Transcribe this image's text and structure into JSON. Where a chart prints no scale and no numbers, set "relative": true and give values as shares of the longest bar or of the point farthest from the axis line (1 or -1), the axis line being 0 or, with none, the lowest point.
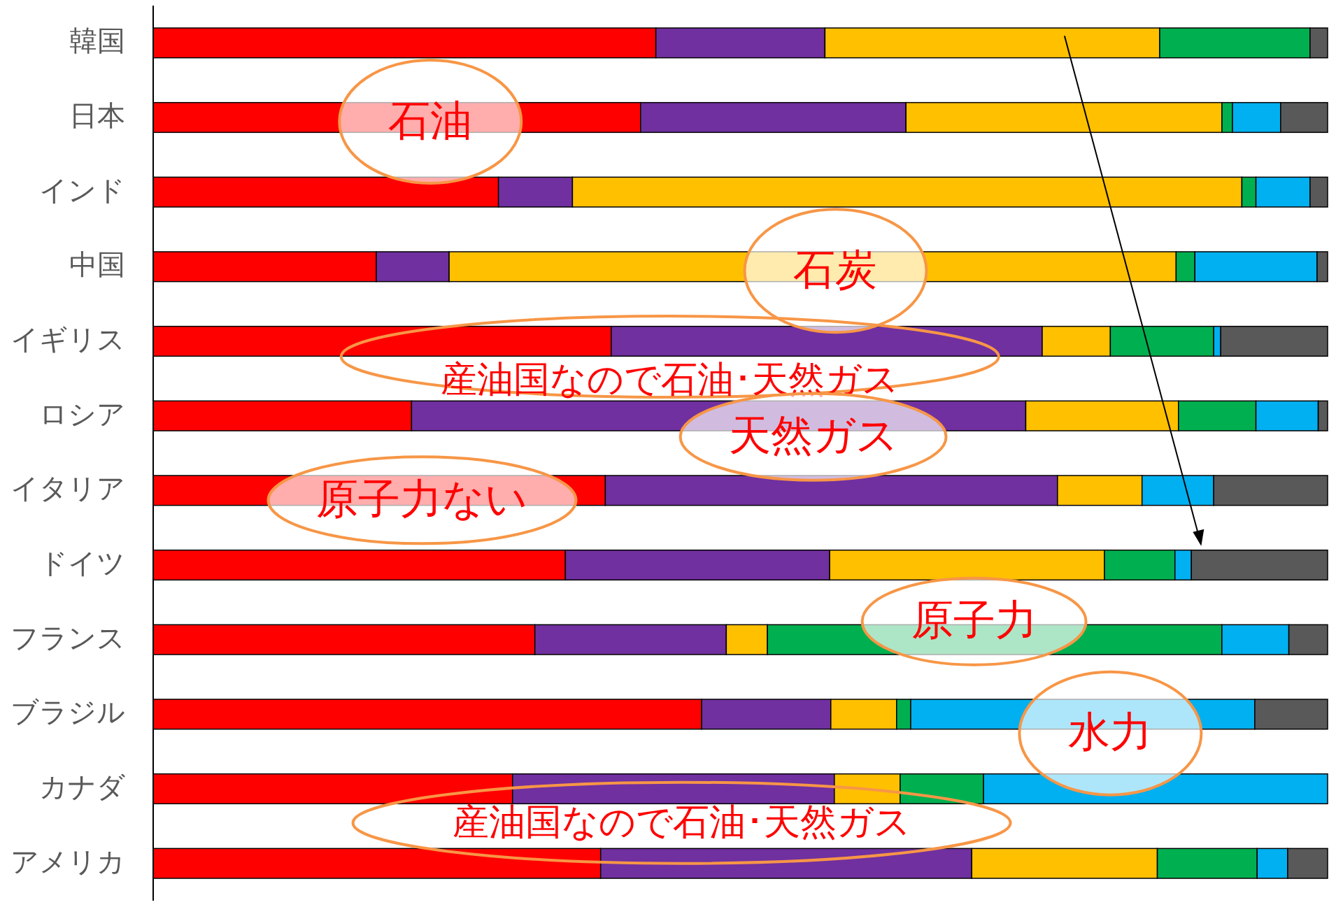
{
  "chart_data": {
    "type": "bar",
    "orientation": "horizontal",
    "stacked": true,
    "relative": true,
    "categories": [
      "韓国",
      "日本",
      "インド",
      "中国",
      "イギリス",
      "ロシア",
      "イタリア",
      "ドイツ",
      "フランス",
      "ブラジル",
      "カナダ",
      "アメリカ"
    ],
    "series": [
      {
        "color": "#ff0000",
        "values": [
          0.428,
          0.415,
          0.294,
          0.19,
          0.39,
          0.22,
          0.385,
          0.351,
          0.325,
          0.467,
          0.306,
          0.381
        ]
      },
      {
        "color": "#7030a0",
        "values": [
          0.144,
          0.226,
          0.063,
          0.062,
          0.367,
          0.523,
          0.385,
          0.225,
          0.163,
          0.11,
          0.274,
          0.316
        ]
      },
      {
        "color": "#ffc000",
        "values": [
          0.285,
          0.269,
          0.57,
          0.619,
          0.058,
          0.13,
          0.072,
          0.234,
          0.035,
          0.056,
          0.056,
          0.158
        ]
      },
      {
        "color": "#00b050",
        "values": [
          0.128,
          0.009,
          0.012,
          0.016,
          0.088,
          0.066,
          null,
          0.06,
          0.387,
          0.012,
          0.071,
          0.085
        ]
      },
      {
        "color": "#00b0f0",
        "values": [
          null,
          0.041,
          0.046,
          0.104,
          0.006,
          0.053,
          0.061,
          0.014,
          0.057,
          0.293,
          0.293,
          0.026
        ]
      },
      {
        "color": "#595959",
        "values": [
          0.015,
          0.04,
          0.015,
          0.009,
          0.091,
          0.008,
          0.097,
          0.116,
          0.033,
          0.062,
          null,
          0.034
        ]
      }
    ],
    "annotations": [
      "石油",
      "石炭",
      "産油国なので石油･天然ガス",
      "天然ガス",
      "原子力ない",
      "原子力",
      "水力",
      "産油国なので石油･天然ガス"
    ]
  }
}
